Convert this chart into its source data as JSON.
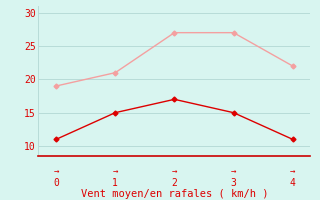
{
  "x": [
    0,
    1,
    2,
    3,
    4
  ],
  "y_rafales": [
    19,
    21,
    27,
    27,
    22
  ],
  "y_moyen": [
    11,
    15,
    17,
    15,
    11
  ],
  "color_rafales": "#f4a0a0",
  "color_moyen": "#dd0000",
  "xlabel": "Vent moyen/en rafales ( km/h )",
  "ylim": [
    8.5,
    31
  ],
  "xlim": [
    -0.3,
    4.3
  ],
  "yticks": [
    10,
    15,
    20,
    25,
    30
  ],
  "xticks": [
    0,
    1,
    2,
    3,
    4
  ],
  "bg_color": "#d8f5f0",
  "grid_color": "#b8dcd8",
  "xlabel_color": "#dd0000",
  "xlabel_fontsize": 7.5,
  "tick_color": "#dd0000",
  "marker": "D",
  "marker_size": 2.5,
  "line_width": 1.0,
  "bottom_line_color": "#cc0000"
}
